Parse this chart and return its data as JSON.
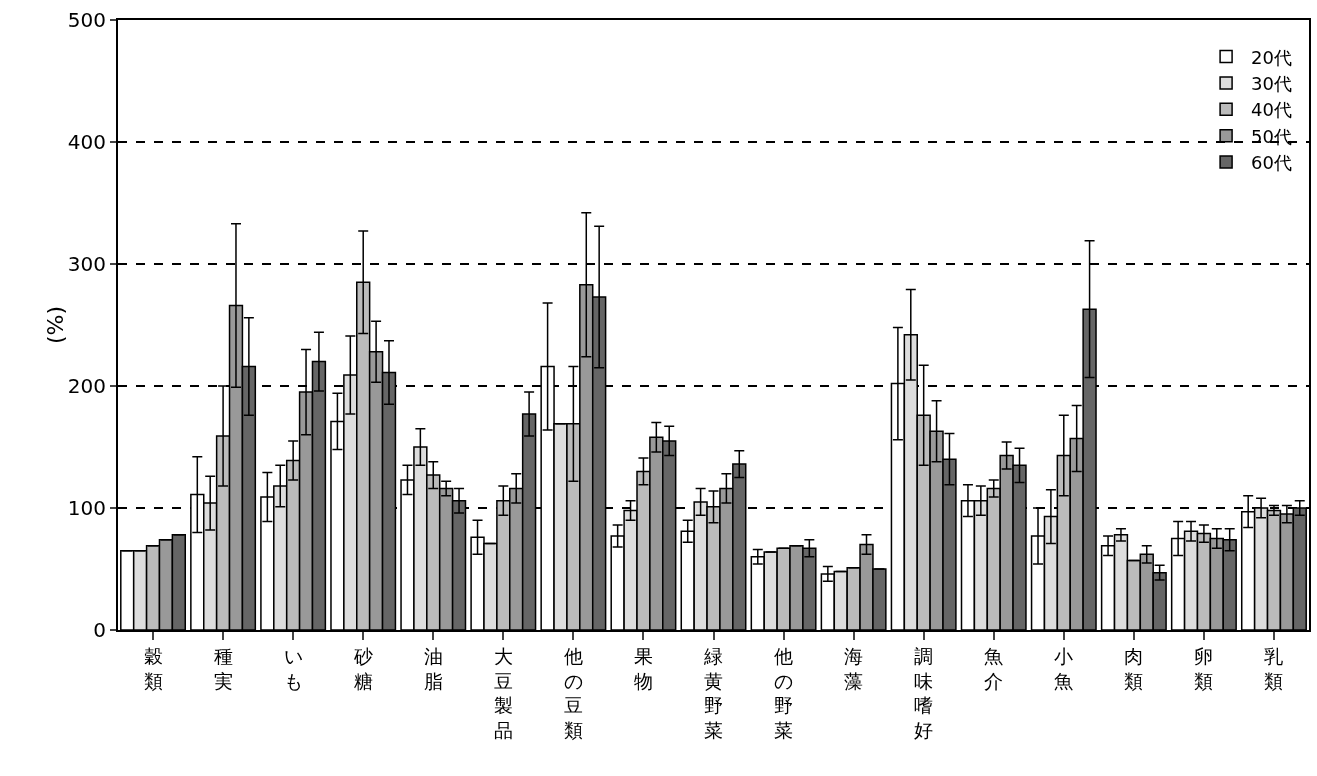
{
  "chart_data": {
    "type": "bar",
    "ylabel": "(%)",
    "categories": [
      "穀類",
      "種実",
      "いも",
      "砂糖",
      "油脂",
      "大豆製品",
      "他の豆類",
      "果物",
      "緑黄野菜",
      "他の野菜",
      "海藻",
      "調味嗜好",
      "魚介",
      "小魚",
      "肉類",
      "卵類",
      "乳類"
    ],
    "series": [
      {
        "name": "20代",
        "color": "#ffffff",
        "values": [
          65,
          111,
          109,
          171,
          123,
          76,
          216,
          77,
          81,
          60,
          46,
          202,
          106,
          77,
          69,
          75,
          97
        ],
        "errors": [
          null,
          31,
          20,
          23,
          12,
          14,
          52,
          9,
          9,
          6,
          6,
          46,
          13,
          23,
          8,
          14,
          13
        ]
      },
      {
        "name": "30代",
        "color": "#dddddd",
        "values": [
          65,
          104,
          118,
          209,
          150,
          71,
          169,
          98,
          105,
          64,
          48,
          242,
          106,
          93,
          78,
          81,
          100
        ],
        "errors": [
          null,
          22,
          17,
          32,
          15,
          null,
          null,
          8,
          11,
          null,
          null,
          37,
          12,
          22,
          5,
          8,
          8
        ]
      },
      {
        "name": "40代",
        "color": "#bbbbbb",
        "values": [
          69,
          159,
          139,
          285,
          127,
          106,
          169,
          130,
          101,
          67,
          51,
          176,
          116,
          143,
          57,
          79,
          98
        ],
        "errors": [
          null,
          41,
          16,
          42,
          11,
          12,
          47,
          11,
          13,
          null,
          null,
          41,
          7,
          33,
          null,
          7,
          4
        ]
      },
      {
        "name": "50代",
        "color": "#999999",
        "values": [
          74,
          266,
          195,
          228,
          116,
          116,
          283,
          158,
          116,
          69,
          70,
          163,
          143,
          157,
          62,
          75,
          95
        ],
        "errors": [
          null,
          67,
          35,
          25,
          6,
          12,
          59,
          12,
          12,
          null,
          8,
          25,
          11,
          27,
          7,
          8,
          7
        ]
      },
      {
        "name": "60代",
        "color": "#666666",
        "values": [
          78,
          216,
          220,
          211,
          106,
          177,
          273,
          155,
          136,
          67,
          50,
          140,
          135,
          263,
          47,
          74,
          100
        ],
        "errors": [
          null,
          40,
          24,
          26,
          10,
          18,
          58,
          12,
          11,
          7,
          null,
          21,
          14,
          56,
          6,
          9,
          6
        ]
      }
    ],
    "ylim": [
      0,
      500
    ],
    "yticks": [
      0,
      100,
      200,
      300,
      400,
      500
    ],
    "grid": "y",
    "legend": "top right"
  }
}
